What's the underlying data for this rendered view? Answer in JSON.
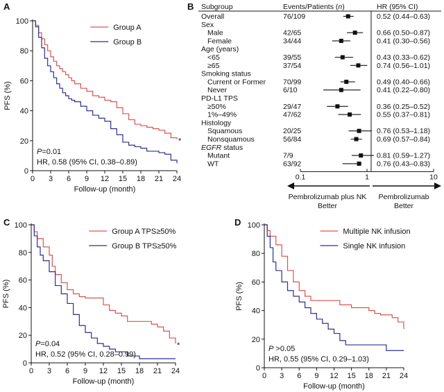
{
  "colors": {
    "group_a": "#d9534f",
    "group_b": "#2a2f8f",
    "axis": "#111111"
  },
  "chart_data": [
    {
      "id": "A",
      "type": "line",
      "panel_letter": "A",
      "xlabel": "Follow-up (month)",
      "ylabel": "PFS (%)",
      "xlim": [
        0,
        24
      ],
      "ylim": [
        0,
        100
      ],
      "xticks": [
        0,
        3,
        6,
        9,
        12,
        15,
        18,
        21,
        24
      ],
      "yticks": [
        0,
        20,
        40,
        60,
        80,
        100
      ],
      "legend_position": "top-right",
      "series": [
        {
          "name": "Group A",
          "color_key": "group_a",
          "x": [
            0,
            0.5,
            1,
            1.5,
            2,
            2.5,
            3,
            3.5,
            4,
            4.5,
            5,
            5.5,
            6,
            6.5,
            7,
            8,
            9,
            10,
            11,
            12,
            13,
            14,
            15,
            16,
            17,
            18,
            19,
            20,
            21,
            22,
            23,
            24
          ],
          "y": [
            100,
            97,
            92,
            88,
            84,
            80,
            76,
            73,
            70,
            68,
            66,
            64,
            62,
            60,
            58,
            55,
            53,
            50,
            49,
            47,
            46,
            42,
            38,
            34,
            31,
            30,
            29,
            28,
            27,
            25,
            22,
            21
          ]
        },
        {
          "name": "Group B",
          "color_key": "group_b",
          "x": [
            0,
            0.5,
            1,
            1.5,
            2,
            2.5,
            3,
            3.5,
            4,
            4.5,
            5,
            5.5,
            6,
            6.5,
            7,
            8,
            9,
            10,
            11,
            12,
            13,
            14,
            15,
            16,
            17,
            18,
            19,
            20,
            21,
            22,
            23,
            24
          ],
          "y": [
            100,
            96,
            89,
            82,
            75,
            70,
            66,
            62,
            58,
            55,
            52,
            50,
            48,
            47,
            46,
            43,
            40,
            37,
            35,
            33,
            28,
            24,
            19,
            17,
            16,
            15,
            13,
            13,
            12,
            11,
            7,
            5
          ]
        }
      ],
      "censor_mark": "*",
      "p_label": "P",
      "p_value": "=0.01",
      "hr_text": "HR, 0.58 (95% CI, 0.38–0.89)"
    },
    {
      "id": "C",
      "type": "line",
      "panel_letter": "C",
      "xlabel": "Follow-up (month)",
      "ylabel": "PFS (%)",
      "xlim": [
        0,
        24
      ],
      "ylim": [
        0,
        100
      ],
      "xticks": [
        0,
        3,
        6,
        9,
        12,
        15,
        18,
        21,
        24
      ],
      "yticks": [
        0,
        20,
        40,
        60,
        80,
        100
      ],
      "legend_position": "top-right",
      "series": [
        {
          "name": "Group A TPS≥50%",
          "color_key": "group_a",
          "x": [
            0,
            0.5,
            1,
            2,
            3,
            3.5,
            4,
            5,
            6,
            7,
            8,
            9,
            10,
            11,
            12,
            13,
            14,
            15,
            16,
            17,
            18,
            19,
            20,
            21,
            22,
            23,
            24
          ],
          "y": [
            100,
            95,
            90,
            84,
            78,
            70,
            64,
            58,
            53,
            50,
            48,
            47,
            47,
            47,
            42,
            38,
            36,
            34,
            30,
            30,
            30,
            30,
            28,
            26,
            23,
            18,
            14
          ]
        },
        {
          "name": "Group B TPS≥50%",
          "color_key": "group_b",
          "x": [
            0,
            0.5,
            1,
            1.5,
            2,
            3,
            4,
            5,
            6,
            7,
            8,
            9,
            10,
            11,
            12,
            13,
            14,
            15,
            16,
            17,
            18,
            19,
            20,
            21,
            22,
            23,
            24
          ],
          "y": [
            100,
            92,
            84,
            78,
            74,
            66,
            56,
            50,
            43,
            35,
            27,
            22,
            18,
            14,
            12,
            10,
            8,
            8,
            5,
            5,
            3,
            3,
            3,
            3,
            3,
            3,
            3
          ]
        }
      ],
      "censor_mark": "*",
      "p_label": "P",
      "p_value": "=0.04",
      "hr_text": "HR, 0.52 (95% CI, 0.28–0.99)"
    },
    {
      "id": "D",
      "type": "line",
      "panel_letter": "D",
      "xlabel": "Follow-up (month)",
      "ylabel": "PFS (%)",
      "xlim": [
        0,
        24
      ],
      "ylim": [
        0,
        100
      ],
      "xticks": [
        0,
        3,
        6,
        9,
        12,
        15,
        18,
        21,
        24
      ],
      "yticks": [
        0,
        20,
        40,
        60,
        80,
        100
      ],
      "legend_position": "top-right",
      "series": [
        {
          "name": "Multiple NK infusion",
          "color_key": "group_a",
          "x": [
            0,
            0.5,
            1,
            2,
            3,
            4,
            5,
            6,
            7,
            8,
            9,
            10,
            11,
            12,
            13,
            14,
            15,
            16,
            17,
            18,
            19,
            20,
            21,
            22,
            23,
            24
          ],
          "y": [
            100,
            96,
            92,
            86,
            78,
            68,
            60,
            54,
            50,
            47,
            47,
            47,
            47,
            47,
            44,
            44,
            42,
            42,
            42,
            40,
            38,
            37,
            37,
            35,
            32,
            27
          ]
        },
        {
          "name": "Single NK infusion",
          "color_key": "group_b",
          "x": [
            0,
            0.5,
            1,
            1.5,
            2,
            3,
            4,
            5,
            6,
            7,
            8,
            9,
            10,
            11,
            12,
            13,
            14,
            15,
            16,
            17,
            18,
            19,
            20,
            21,
            22,
            23,
            24
          ],
          "y": [
            100,
            92,
            84,
            74,
            68,
            60,
            54,
            50,
            46,
            42,
            38,
            34,
            31,
            27,
            24,
            19,
            16,
            16,
            16,
            16,
            16,
            16,
            16,
            12,
            12,
            12,
            12
          ]
        }
      ],
      "p_label": "P",
      "p_value": " >0.05",
      "hr_text": "HR, 0.55 (95% CI, 0.29–1.03)"
    },
    {
      "id": "B",
      "type": "forest",
      "panel_letter": "B",
      "columns": {
        "subgroup": "Subgroup",
        "events": "Events/Patients (",
        "events_italic": "n",
        "events_close": ")",
        "hr": "HR (95% CI)"
      },
      "x_scale": "log",
      "xlim": [
        0.1,
        10
      ],
      "xtick_labels": [
        "0.1",
        "1",
        "10"
      ],
      "reference_line": 1,
      "rows": [
        {
          "label": "Overall",
          "events": "76/109",
          "hr": 0.52,
          "lo": 0.44,
          "hi": 0.63,
          "hr_text": "0.52 (0.44–0.63)"
        },
        {
          "label": "Sex",
          "header": true
        },
        {
          "label": "Male",
          "indent": true,
          "events": "42/65",
          "hr": 0.66,
          "lo": 0.5,
          "hi": 0.87,
          "hr_text": "0.66 (0.50–0.87)"
        },
        {
          "label": "Female",
          "indent": true,
          "events": "34/44",
          "hr": 0.41,
          "lo": 0.3,
          "hi": 0.56,
          "hr_text": "0.41 (0.30–0.56)"
        },
        {
          "label": "Age (years)",
          "header": true
        },
        {
          "label": "<65",
          "indent": true,
          "events": "39/55",
          "hr": 0.43,
          "lo": 0.33,
          "hi": 0.62,
          "hr_text": "0.43 (0.33–0.62)"
        },
        {
          "label": "≥65",
          "indent": true,
          "events": "37/54",
          "hr": 0.74,
          "lo": 0.56,
          "hi": 1.01,
          "hr_text": "0.74 (0.56–1.01)"
        },
        {
          "label": "Smoking status",
          "header": true
        },
        {
          "label": "Current or Former",
          "indent": true,
          "events": "70/99",
          "hr": 0.49,
          "lo": 0.4,
          "hi": 0.66,
          "hr_text": "0.49 (0.40–0.66)"
        },
        {
          "label": "Never",
          "indent": true,
          "events": "6/10",
          "hr": 0.41,
          "lo": 0.22,
          "hi": 0.8,
          "hr_text": "0.41 (0.22–0.80)"
        },
        {
          "label": "PD-L1 TPS",
          "header": true
        },
        {
          "label": "≥50%",
          "indent": true,
          "events": "29/47",
          "hr": 0.36,
          "lo": 0.25,
          "hi": 0.52,
          "hr_text": "0.36 (0.25–0.52)"
        },
        {
          "label": "1%–49%",
          "indent": true,
          "events": "47/62",
          "hr": 0.55,
          "lo": 0.37,
          "hi": 0.81,
          "hr_text": "0.55 (0.37–0.81)"
        },
        {
          "label": "Histology",
          "header": true
        },
        {
          "label": "Squamous",
          "indent": true,
          "events": "20/25",
          "hr": 0.76,
          "lo": 0.53,
          "hi": 1.18,
          "hr_text": "0.76 (0.53–1.18)"
        },
        {
          "label": "Nonsquamous",
          "indent": true,
          "events": "56/84",
          "hr": 0.69,
          "lo": 0.57,
          "hi": 0.84,
          "hr_text": "0.69 (0.57–0.84)"
        },
        {
          "label": "EGFR",
          "label_rest": " status",
          "header": true,
          "italic_first": true
        },
        {
          "label": "Mutant",
          "indent": true,
          "events": "7/9",
          "hr": 0.81,
          "lo": 0.59,
          "hi": 1.27,
          "hr_text": "0.81 (0.59–1.27)"
        },
        {
          "label": "WT",
          "indent": true,
          "events": "63/92",
          "hr": 0.76,
          "lo": 0.43,
          "hi": 0.83,
          "hr_text": "0.76 (0.43–0.83)"
        }
      ],
      "favors_left": [
        "Pembrolizumab plus NK",
        "Better"
      ],
      "favors_right": [
        "Pembrolizumab",
        "Better"
      ]
    }
  ]
}
